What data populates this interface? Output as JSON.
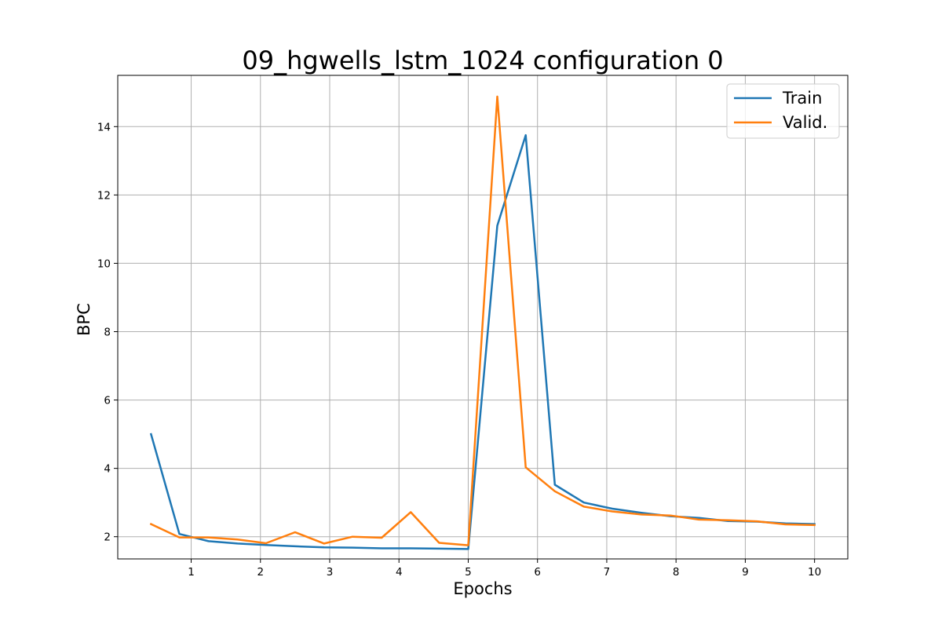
{
  "chart_data": {
    "type": "line",
    "title": "09_hgwells_lstm_1024 configuration 0",
    "xlabel": "Epochs",
    "ylabel": "BPC",
    "xlim": [
      -0.06,
      10.48
    ],
    "ylim": [
      1.35,
      15.5
    ],
    "xticks": [
      1,
      2,
      3,
      4,
      5,
      6,
      7,
      8,
      9,
      10
    ],
    "yticks": [
      2,
      4,
      6,
      8,
      10,
      12,
      14
    ],
    "grid": true,
    "legend_position": "top-right",
    "series": [
      {
        "name": "Train",
        "color": "#1f77b4",
        "x": [
          0.42,
          0.83,
          1.25,
          1.67,
          2.08,
          2.5,
          2.92,
          3.33,
          3.75,
          4.17,
          4.58,
          5.0,
          5.42,
          5.83,
          6.25,
          6.67,
          7.08,
          7.5,
          7.92,
          8.33,
          8.75,
          9.17,
          9.58,
          10.0
        ],
        "y": [
          5.0,
          2.08,
          1.87,
          1.8,
          1.76,
          1.72,
          1.69,
          1.68,
          1.66,
          1.66,
          1.65,
          1.64,
          11.1,
          13.75,
          3.52,
          3.0,
          2.82,
          2.7,
          2.6,
          2.55,
          2.46,
          2.44,
          2.39,
          2.37
        ]
      },
      {
        "name": "Valid.",
        "color": "#ff7f0e",
        "x": [
          0.42,
          0.83,
          1.25,
          1.67,
          2.08,
          2.5,
          2.92,
          3.33,
          3.75,
          4.17,
          4.58,
          5.0,
          5.42,
          5.83,
          6.25,
          6.67,
          7.08,
          7.5,
          7.92,
          8.33,
          8.75,
          9.17,
          9.58,
          10.0
        ],
        "y": [
          2.37,
          1.98,
          1.98,
          1.92,
          1.81,
          2.13,
          1.8,
          2.0,
          1.97,
          2.72,
          1.82,
          1.75,
          14.88,
          4.03,
          3.33,
          2.88,
          2.74,
          2.65,
          2.62,
          2.5,
          2.48,
          2.45,
          2.36,
          2.34
        ]
      }
    ]
  }
}
